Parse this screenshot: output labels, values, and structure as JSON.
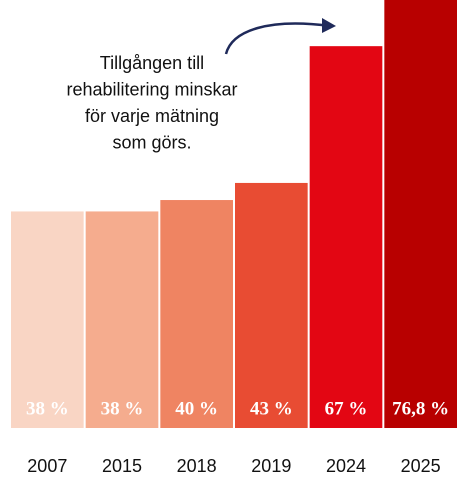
{
  "chart_data": {
    "type": "bar",
    "categories": [
      "2007",
      "2015",
      "2018",
      "2019",
      "2024",
      "2025"
    ],
    "values": [
      38,
      38,
      40,
      43,
      67,
      76.8
    ],
    "value_labels": [
      "38 %",
      "38 %",
      "40 %",
      "43 %",
      "67 %",
      "76,8 %"
    ],
    "colors": [
      "#f9d5c4",
      "#f5ac8e",
      "#ef8462",
      "#e84c33",
      "#e30613",
      "#b80000"
    ],
    "ylim": [
      0,
      75.1
    ],
    "annotation": [
      "Tillgången till",
      "rehabilitering minskar",
      "för varje mätning",
      "som görs."
    ]
  }
}
